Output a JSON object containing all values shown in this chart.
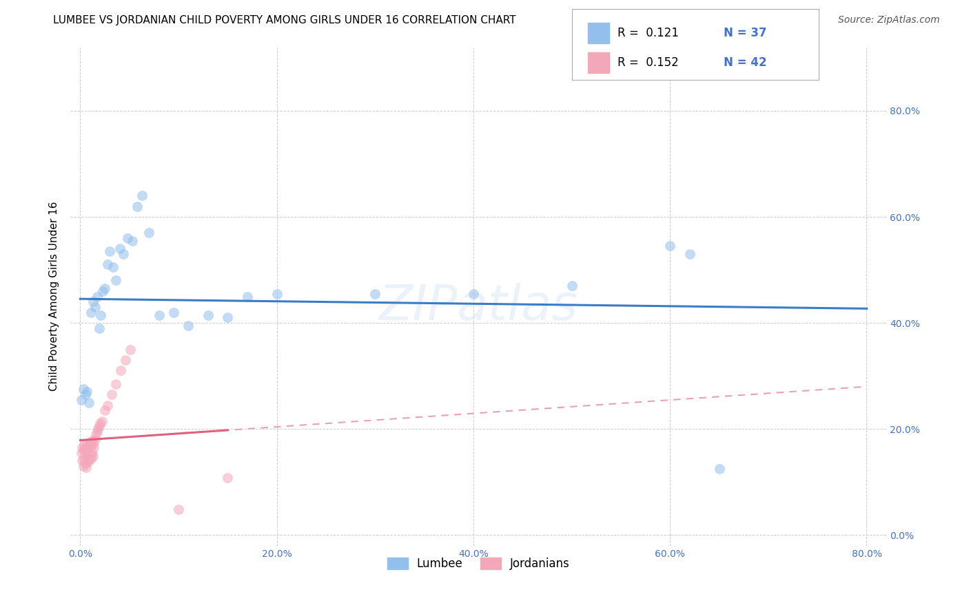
{
  "title": "LUMBEE VS JORDANIAN CHILD POVERTY AMONG GIRLS UNDER 16 CORRELATION CHART",
  "source": "Source: ZipAtlas.com",
  "ylabel": "Child Poverty Among Girls Under 16",
  "watermark": "ZIPatlas",
  "lumbee_R": 0.121,
  "lumbee_N": 37,
  "jordanian_R": 0.152,
  "jordanian_N": 42,
  "xlim": [
    -0.01,
    0.82
  ],
  "ylim": [
    -0.02,
    0.92
  ],
  "xticks": [
    0.0,
    0.2,
    0.4,
    0.6,
    0.8
  ],
  "yticks": [
    0.0,
    0.2,
    0.4,
    0.6,
    0.8
  ],
  "lumbee_color": "#92BFEC",
  "jordanian_color": "#F4A7B9",
  "lumbee_line_color": "#3A7CC7",
  "jordanian_line_color": "#E06080",
  "jordanian_dashed_color": "#E8A0B5",
  "background_color": "#FFFFFF",
  "lumbee_x": [
    0.001,
    0.003,
    0.005,
    0.007,
    0.009,
    0.011,
    0.013,
    0.015,
    0.017,
    0.019,
    0.021,
    0.023,
    0.025,
    0.028,
    0.03,
    0.033,
    0.036,
    0.04,
    0.044,
    0.048,
    0.053,
    0.058,
    0.063,
    0.08,
    0.095,
    0.11,
    0.13,
    0.15,
    0.17,
    0.2,
    0.3,
    0.4,
    0.5,
    0.6,
    0.62,
    0.65,
    0.07
  ],
  "lumbee_y": [
    0.255,
    0.275,
    0.265,
    0.27,
    0.25,
    0.42,
    0.44,
    0.43,
    0.45,
    0.39,
    0.415,
    0.46,
    0.465,
    0.51,
    0.535,
    0.505,
    0.48,
    0.54,
    0.53,
    0.56,
    0.555,
    0.62,
    0.64,
    0.415,
    0.42,
    0.395,
    0.415,
    0.41,
    0.45,
    0.455,
    0.455,
    0.455,
    0.47,
    0.545,
    0.53,
    0.125,
    0.57
  ],
  "jordanian_x": [
    0.001,
    0.002,
    0.002,
    0.003,
    0.003,
    0.004,
    0.004,
    0.005,
    0.005,
    0.006,
    0.006,
    0.007,
    0.007,
    0.008,
    0.008,
    0.009,
    0.009,
    0.01,
    0.01,
    0.011,
    0.011,
    0.012,
    0.012,
    0.013,
    0.013,
    0.014,
    0.015,
    0.016,
    0.017,
    0.018,
    0.019,
    0.02,
    0.022,
    0.025,
    0.028,
    0.032,
    0.036,
    0.041,
    0.046,
    0.051,
    0.1,
    0.15
  ],
  "jordanian_y": [
    0.155,
    0.14,
    0.165,
    0.13,
    0.16,
    0.145,
    0.17,
    0.135,
    0.158,
    0.128,
    0.162,
    0.148,
    0.172,
    0.138,
    0.165,
    0.142,
    0.168,
    0.152,
    0.175,
    0.145,
    0.17,
    0.155,
    0.178,
    0.148,
    0.172,
    0.165,
    0.18,
    0.19,
    0.195,
    0.2,
    0.205,
    0.21,
    0.215,
    0.235,
    0.245,
    0.265,
    0.285,
    0.31,
    0.33,
    0.35,
    0.048,
    0.108
  ],
  "title_fontsize": 11,
  "axis_label_fontsize": 11,
  "tick_fontsize": 10,
  "legend_fontsize": 12,
  "source_fontsize": 10,
  "marker_size": 100,
  "marker_alpha": 0.55
}
